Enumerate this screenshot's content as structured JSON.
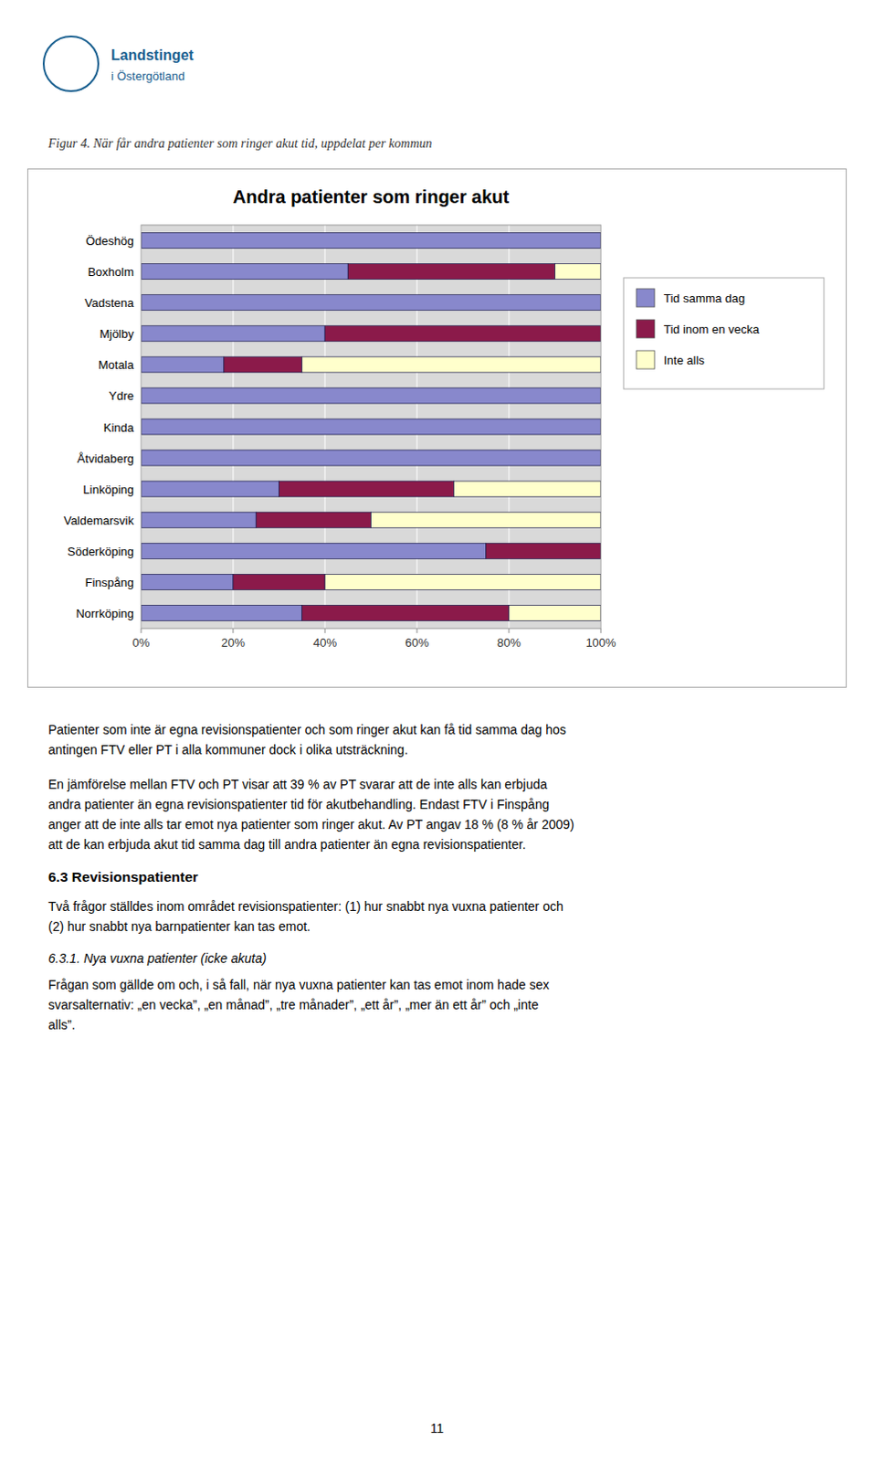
{
  "chart_data": {
    "type": "bar",
    "orientation": "horizontal",
    "stacked": true,
    "title": "Andra patienter som ringer akut",
    "categories": [
      "Ödeshög",
      "Boxholm",
      "Vadstena",
      "Mjölby",
      "Motala",
      "Ydre",
      "Kinda",
      "Åtvidaberg",
      "Linköping",
      "Valdemarsvik",
      "Söderköping",
      "Finspång",
      "Norrköping"
    ],
    "series": [
      {
        "name": "Tid samma dag",
        "color": "#8888cc",
        "values": [
          100,
          45,
          100,
          40,
          18,
          100,
          100,
          100,
          30,
          25,
          75,
          20,
          35
        ]
      },
      {
        "name": "Tid inom en vecka",
        "color": "#8b1a4a",
        "values": [
          0,
          45,
          0,
          60,
          17,
          0,
          0,
          0,
          38,
          25,
          25,
          20,
          45
        ]
      },
      {
        "name": "Inte alls",
        "color": "#ffffcc",
        "values": [
          0,
          10,
          0,
          0,
          65,
          0,
          0,
          0,
          32,
          50,
          0,
          60,
          20
        ]
      }
    ],
    "xlim": [
      0,
      100
    ],
    "xticks": [
      {
        "value": 0,
        "label": "0%"
      },
      {
        "value": 20,
        "label": "20%"
      },
      {
        "value": 40,
        "label": "40%"
      },
      {
        "value": 60,
        "label": "60%"
      },
      {
        "value": 80,
        "label": "80%"
      },
      {
        "value": 100,
        "label": "100%"
      }
    ],
    "grid": true,
    "legend": "right"
  },
  "page": {
    "logo": [
      "Landstinget",
      "i Östergötland"
    ],
    "caption": "Figur 4. När får andra patienter som ringer akut tid, uppdelat per kommun",
    "body": [
      {
        "kind": "paragraph",
        "lines": [
          "Patienter som inte är egna revisionspatienter och som ringer akut kan få tid samma dag hos",
          "antingen FTV eller PT i alla kommuner dock i olika utsträckning."
        ]
      },
      {
        "kind": "paragraph",
        "lines": [
          "En jämförelse mellan FTV och PT visar att 39 % av PT svarar att de inte alls kan erbjuda",
          "andra patienter än egna revisionspatienter tid för akutbehandling. Endast FTV i Finspång",
          "anger att de inte alls tar emot nya patienter som ringer akut. Av PT angav 18 % (8 % år 2009)",
          "att de kan erbjuda akut tid samma dag till andra patienter än egna revisionspatienter."
        ]
      },
      {
        "kind": "heading",
        "lines": [
          "6.3 Revisionspatienter"
        ]
      },
      {
        "kind": "paragraph",
        "lines": [
          "Två frågor ställdes inom området revisionspatienter: (1) hur snabbt nya vuxna patienter och",
          "(2) hur snabbt nya barnpatienter kan tas emot."
        ]
      },
      {
        "kind": "subheading",
        "lines": [
          "6.3.1. Nya vuxna patienter (icke akuta)"
        ]
      },
      {
        "kind": "paragraph",
        "lines": [
          "Frågan som gällde om och, i så fall, när nya vuxna patienter kan tas emot inom hade sex",
          "svarsalternativ: „en vecka”, „en månad”, „tre månader”, „ett år”, „mer än ett år” och „inte",
          "alls”."
        ]
      }
    ],
    "page_number": "11"
  }
}
